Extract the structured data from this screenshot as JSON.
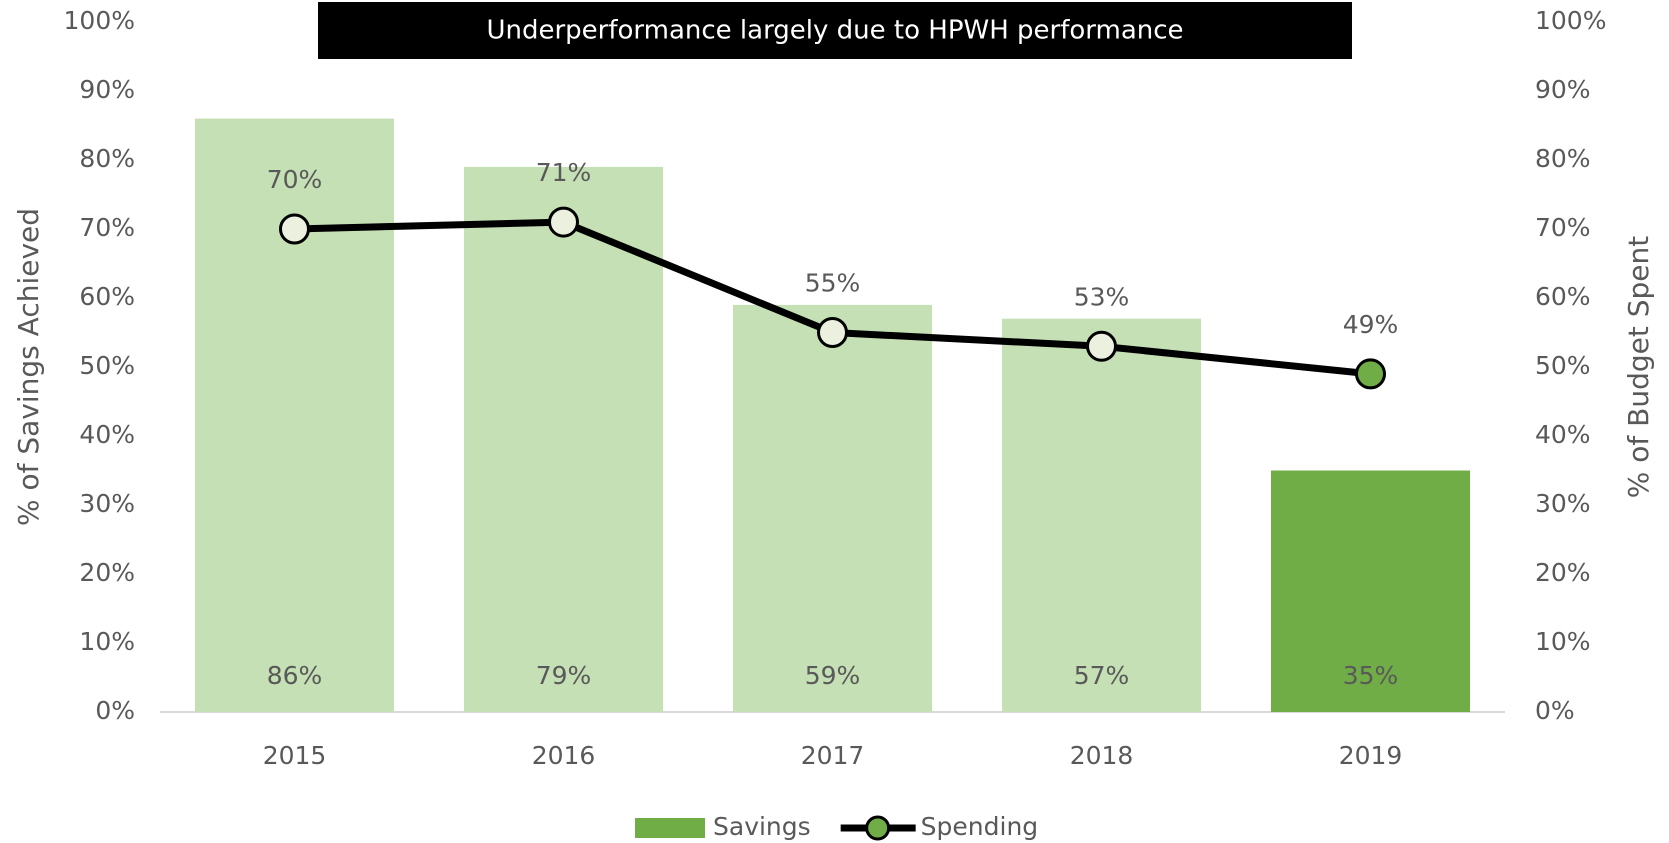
{
  "chart_data": {
    "type": "bar_line",
    "title": "Underperformance largely due to HPWH performance",
    "categories": [
      "2015",
      "2016",
      "2017",
      "2018",
      "2019"
    ],
    "y_label": "% of Savings Achieved",
    "y2_label": "% of Budget Spent",
    "series": [
      {
        "name": "Savings",
        "type": "bar",
        "color": "#70ad47",
        "colors": [
          "#c5e0b4",
          "#c5e0b4",
          "#c5e0b4",
          "#c5e0b4",
          "#70ad47"
        ],
        "values": [
          86,
          79,
          59,
          57,
          35
        ],
        "value_labels": [
          "86%",
          "79%",
          "59%",
          "57%",
          "35%"
        ]
      },
      {
        "name": "Spending",
        "type": "line",
        "axis": "y2",
        "color": "#000000",
        "marker_colors": [
          "#ebf1de",
          "#ebf1de",
          "#ebf1de",
          "#ebf1de",
          "#70ad47"
        ],
        "values": [
          70,
          71,
          55,
          53,
          49
        ],
        "value_labels": [
          "70%",
          "71%",
          "55%",
          "53%",
          "49%"
        ]
      }
    ],
    "ylim": [
      0,
      100
    ],
    "yticks": [
      {
        "value": 0,
        "label": "0%"
      },
      {
        "value": 10,
        "label": "10%"
      },
      {
        "value": 20,
        "label": "20%"
      },
      {
        "value": 30,
        "label": "30%"
      },
      {
        "value": 40,
        "label": "40%"
      },
      {
        "value": 50,
        "label": "50%"
      },
      {
        "value": 60,
        "label": "60%"
      },
      {
        "value": 70,
        "label": "70%"
      },
      {
        "value": 80,
        "label": "80%"
      },
      {
        "value": 90,
        "label": "90%"
      },
      {
        "value": 100,
        "label": "100%"
      }
    ],
    "y2lim": [
      0,
      100
    ],
    "y2ticks": [
      {
        "value": 0,
        "label": "0%"
      },
      {
        "value": 10,
        "label": "10%"
      },
      {
        "value": 20,
        "label": "20%"
      },
      {
        "value": 30,
        "label": "30%"
      },
      {
        "value": 40,
        "label": "40%"
      },
      {
        "value": 50,
        "label": "50%"
      },
      {
        "value": 60,
        "label": "60%"
      },
      {
        "value": 70,
        "label": "70%"
      },
      {
        "value": 80,
        "label": "80%"
      },
      {
        "value": 90,
        "label": "90%"
      },
      {
        "value": 100,
        "label": "100%"
      }
    ],
    "legend": "bottom"
  }
}
